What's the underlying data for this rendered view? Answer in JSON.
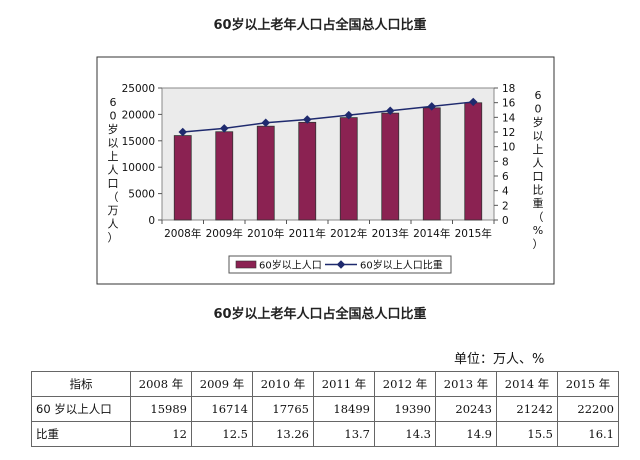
{
  "chart_title": "60岁以上老年人口占全国总人口比重",
  "table_title": "60岁以上老年人口占全国总人口比重",
  "unit_label": "单位：万人、%",
  "chart_data": {
    "type": "bar",
    "title": "60岁以上老年人口占全国总人口比重",
    "categories": [
      "2008年",
      "2009年",
      "2010年",
      "2011年",
      "2012年",
      "2013年",
      "2014年",
      "2015年"
    ],
    "ylabel": "60岁以上人口（万人）",
    "y2label": "60岁以上人口比重（%）",
    "ylim": [
      0,
      25000
    ],
    "y2lim": [
      0,
      18
    ],
    "yticks": [
      "0",
      "5000",
      "10000",
      "15000",
      "20000",
      "25000"
    ],
    "y2ticks": [
      "0",
      "2",
      "4",
      "6",
      "8",
      "10",
      "12",
      "14",
      "16",
      "18"
    ],
    "legend_position": "bottom",
    "series": [
      {
        "name": "60岁以上人口",
        "kind": "bar",
        "axis": "left",
        "color": "#8b2252",
        "values": [
          15989,
          16714,
          17765,
          18499,
          19390,
          20243,
          21242,
          22200
        ]
      },
      {
        "name": "60岁以上人口比重",
        "kind": "line",
        "axis": "right",
        "color": "#1f2a6e",
        "values": [
          12,
          12.5,
          13.26,
          13.7,
          14.3,
          14.9,
          15.5,
          16.1
        ]
      }
    ]
  },
  "table": {
    "header": [
      "指标",
      "2008 年",
      "2009 年",
      "2010 年",
      "2011 年",
      "2012 年",
      "2013 年",
      "2014 年",
      "2015 年"
    ],
    "rows": [
      {
        "label": "60 岁以上人口",
        "cells": [
          "15989",
          "16714",
          "17765",
          "18499",
          "19390",
          "20243",
          "21242",
          "22200"
        ]
      },
      {
        "label": "比重",
        "cells": [
          "12",
          "12.5",
          "13.26",
          "13.7",
          "14.3",
          "14.9",
          "15.5",
          "16.1"
        ]
      }
    ]
  }
}
